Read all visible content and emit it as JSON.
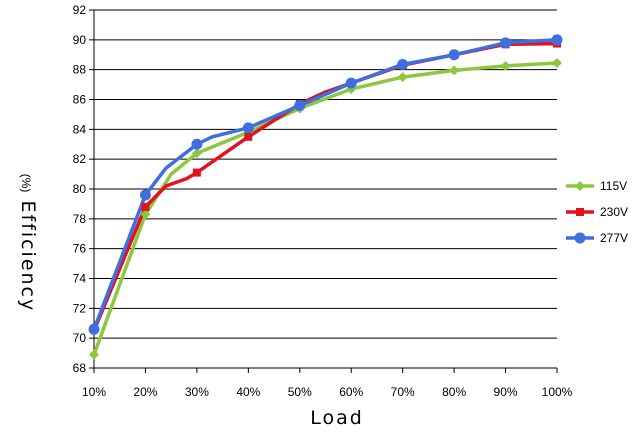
{
  "chart_data": {
    "type": "line",
    "title": "",
    "xlabel": "Load",
    "ylabel": "Efficiency",
    "ylabel_unit": "(%)",
    "categories": [
      "10%",
      "20%",
      "30%",
      "40%",
      "50%",
      "60%",
      "70%",
      "80%",
      "90%",
      "100%"
    ],
    "x": [
      10,
      20,
      30,
      40,
      50,
      60,
      70,
      80,
      90,
      100
    ],
    "yticks": [
      "68",
      "70",
      "72",
      "74",
      "76",
      "78",
      "80",
      "82",
      "84",
      "86",
      "88",
      "90",
      "92"
    ],
    "ylim": [
      68,
      92
    ],
    "xlim": [
      10,
      100
    ],
    "grid": "horizontal",
    "legend_position": "right",
    "series": [
      {
        "name": "115V",
        "color": "#8dc63f",
        "marker": "diamond",
        "points": [
          [
            10,
            68.9
          ],
          [
            20,
            78.3
          ],
          [
            25,
            81.0
          ],
          [
            30,
            82.4
          ],
          [
            40,
            83.8
          ],
          [
            50,
            85.4
          ],
          [
            60,
            86.7
          ],
          [
            70,
            87.5
          ],
          [
            80,
            87.95
          ],
          [
            90,
            88.25
          ],
          [
            100,
            88.45
          ]
        ],
        "markers": [
          [
            10,
            68.9
          ],
          [
            20,
            78.3
          ],
          [
            30,
            82.4
          ],
          [
            40,
            83.8
          ],
          [
            50,
            85.4
          ],
          [
            60,
            86.7
          ],
          [
            70,
            87.5
          ],
          [
            80,
            87.95
          ],
          [
            90,
            88.25
          ],
          [
            100,
            88.45
          ]
        ]
      },
      {
        "name": "230V",
        "color": "#e3101e",
        "marker": "square",
        "points": [
          [
            10,
            70.5
          ],
          [
            20,
            78.8
          ],
          [
            24,
            80.2
          ],
          [
            28,
            80.7
          ],
          [
            30,
            81.1
          ],
          [
            40,
            83.5
          ],
          [
            50,
            85.7
          ],
          [
            55,
            86.5
          ],
          [
            60,
            87.1
          ],
          [
            70,
            88.3
          ],
          [
            80,
            89.0
          ],
          [
            90,
            89.7
          ],
          [
            100,
            89.75
          ]
        ],
        "markers": [
          [
            20,
            78.8
          ],
          [
            30,
            81.1
          ],
          [
            40,
            83.5
          ],
          [
            50,
            85.7
          ],
          [
            60,
            87.1
          ],
          [
            70,
            88.3
          ],
          [
            80,
            89.0
          ],
          [
            90,
            89.7
          ],
          [
            100,
            89.75
          ]
        ]
      },
      {
        "name": "277V",
        "color": "#3d6fe0",
        "marker": "circle",
        "points": [
          [
            10,
            70.6
          ],
          [
            20,
            79.6
          ],
          [
            24,
            81.4
          ],
          [
            30,
            83.0
          ],
          [
            33,
            83.5
          ],
          [
            40,
            84.1
          ],
          [
            50,
            85.6
          ],
          [
            60,
            87.1
          ],
          [
            70,
            88.35
          ],
          [
            80,
            89.0
          ],
          [
            90,
            89.8
          ],
          [
            100,
            90.0
          ]
        ],
        "markers": [
          [
            10,
            70.6
          ],
          [
            20,
            79.6
          ],
          [
            30,
            83.0
          ],
          [
            40,
            84.1
          ],
          [
            50,
            85.6
          ],
          [
            60,
            87.1
          ],
          [
            70,
            88.35
          ],
          [
            80,
            89.0
          ],
          [
            90,
            89.8
          ],
          [
            100,
            90.0
          ]
        ]
      }
    ]
  }
}
